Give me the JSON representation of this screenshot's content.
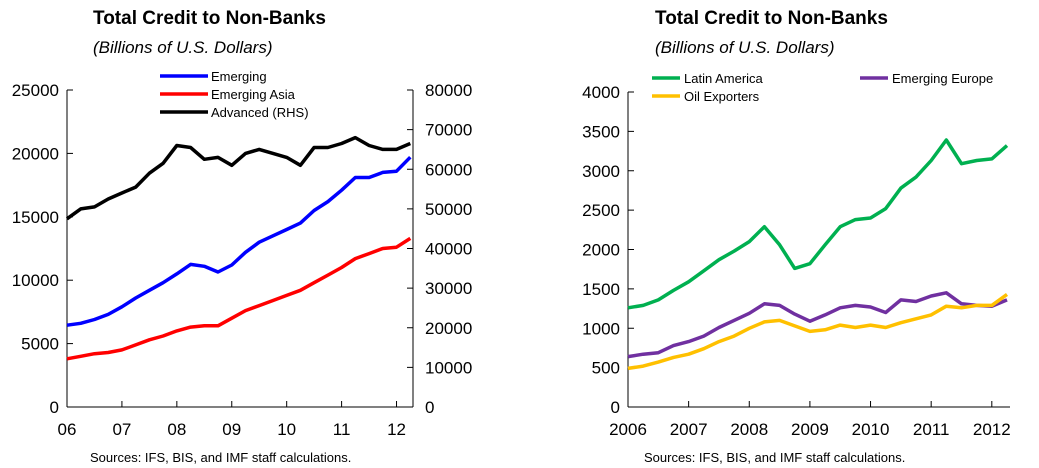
{
  "chart_data": [
    {
      "type": "line",
      "title": "Total Credit to Non-Banks",
      "subtitle": "(Billions of U.S. Dollars)",
      "source": "Sources: IFS, BIS, and IMF staff calculations.",
      "x": [
        2006.0,
        2006.25,
        2006.5,
        2006.75,
        2007.0,
        2007.25,
        2007.5,
        2007.75,
        2008.0,
        2008.25,
        2008.5,
        2008.75,
        2009.0,
        2009.25,
        2009.5,
        2009.75,
        2010.0,
        2010.25,
        2010.5,
        2010.75,
        2011.0,
        2011.25,
        2011.5,
        2011.75,
        2012.0,
        2012.25
      ],
      "xticks": [
        2006,
        2007,
        2008,
        2009,
        2010,
        2011,
        2012
      ],
      "xtick_labels": [
        "06",
        "07",
        "08",
        "09",
        "10",
        "11",
        "12"
      ],
      "xlim": [
        2006,
        2012.3
      ],
      "ylim_left": [
        0,
        25000
      ],
      "yticks_left": [
        0,
        5000,
        10000,
        15000,
        20000,
        25000
      ],
      "ylim_right": [
        0,
        80000
      ],
      "yticks_right": [
        0,
        10000,
        20000,
        30000,
        40000,
        50000,
        60000,
        70000,
        80000
      ],
      "grid": false,
      "legend_position": "top-center",
      "series": [
        {
          "name": "Emerging",
          "axis": "left",
          "color": "#0000ff",
          "values": [
            6450,
            6600,
            6900,
            7300,
            7900,
            8600,
            9200,
            9800,
            10500,
            11250,
            11100,
            10650,
            11200,
            12200,
            13000,
            13500,
            14000,
            14500,
            15500,
            16200,
            17100,
            18100,
            18100,
            18500,
            18600,
            19700
          ]
        },
        {
          "name": "Emerging Asia",
          "axis": "left",
          "color": "#ff0000",
          "values": [
            3800,
            4000,
            4200,
            4300,
            4500,
            4900,
            5300,
            5600,
            6000,
            6300,
            6400,
            6400,
            7000,
            7600,
            8000,
            8400,
            8800,
            9200,
            9800,
            10400,
            11000,
            11700,
            12100,
            12500,
            12600,
            13300
          ]
        },
        {
          "name": "Advanced (RHS)",
          "axis": "right",
          "color": "#000000",
          "values": [
            47500,
            50000,
            50500,
            52500,
            54000,
            55500,
            59000,
            61500,
            66000,
            65500,
            62500,
            63000,
            61000,
            64000,
            65000,
            64000,
            63000,
            61000,
            65500,
            65500,
            66500,
            68000,
            66000,
            65000,
            65000,
            66500
          ]
        }
      ]
    },
    {
      "type": "line",
      "title": "Total Credit to Non-Banks",
      "subtitle": "(Billions of U.S. Dollars)",
      "source": "Sources: IFS, BIS, and IMF staff calculations.",
      "x": [
        2006.0,
        2006.25,
        2006.5,
        2006.75,
        2007.0,
        2007.25,
        2007.5,
        2007.75,
        2008.0,
        2008.25,
        2008.5,
        2008.75,
        2009.0,
        2009.25,
        2009.5,
        2009.75,
        2010.0,
        2010.25,
        2010.5,
        2010.75,
        2011.0,
        2011.25,
        2011.5,
        2011.75,
        2012.0,
        2012.25
      ],
      "xticks": [
        2006,
        2007,
        2008,
        2009,
        2010,
        2011,
        2012
      ],
      "xtick_labels": [
        "2006",
        "2007",
        "2008",
        "2009",
        "2010",
        "2011",
        "2012"
      ],
      "xlim": [
        2006,
        2012.3
      ],
      "ylim": [
        0,
        4000
      ],
      "yticks": [
        0,
        500,
        1000,
        1500,
        2000,
        2500,
        3000,
        3500,
        4000
      ],
      "grid": false,
      "legend_position": "top",
      "series": [
        {
          "name": "Latin America",
          "color": "#00b050",
          "values": [
            1260,
            1290,
            1360,
            1480,
            1590,
            1730,
            1870,
            1980,
            2100,
            2290,
            2060,
            1760,
            1820,
            2060,
            2290,
            2380,
            2400,
            2520,
            2780,
            2920,
            3130,
            3390,
            3090,
            3130,
            3150,
            3320
          ]
        },
        {
          "name": "Emerging Europe",
          "color": "#7030a0",
          "values": [
            640,
            670,
            690,
            780,
            830,
            900,
            1010,
            1100,
            1190,
            1310,
            1290,
            1180,
            1090,
            1170,
            1260,
            1290,
            1270,
            1200,
            1360,
            1340,
            1410,
            1450,
            1310,
            1290,
            1280,
            1360
          ]
        },
        {
          "name": "Oil Exporters",
          "color": "#ffc000",
          "values": [
            490,
            520,
            570,
            630,
            670,
            740,
            830,
            900,
            1000,
            1080,
            1100,
            1030,
            960,
            980,
            1040,
            1010,
            1040,
            1010,
            1070,
            1120,
            1170,
            1280,
            1260,
            1290,
            1290,
            1430
          ]
        }
      ]
    }
  ]
}
